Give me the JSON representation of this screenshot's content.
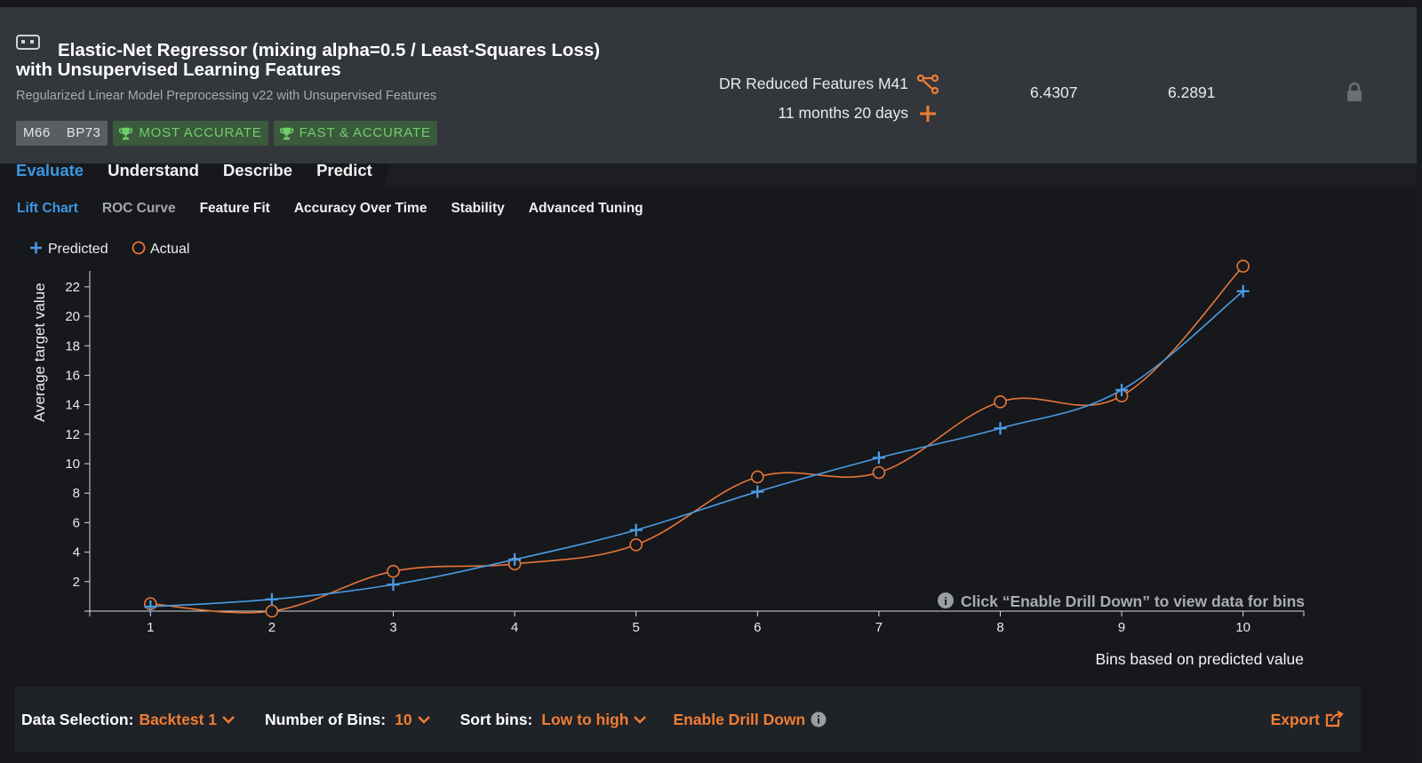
{
  "model": {
    "title_line1": "Elastic-Net Regressor (mixing alpha=0.5 / Least-Squares Loss)",
    "title_line2": "with Unsupervised Learning Features",
    "subtitle": "Regularized Linear Model Preprocessing v22 with Unsupervised Features",
    "id_badge": "M66",
    "bp_badge": "BP73",
    "badges": [
      "MOST ACCURATE",
      "FAST & ACCURATE"
    ],
    "feature_list": "DR Reduced Features M41",
    "sample_age": "11 months 20 days",
    "metric_validation": "6.4307",
    "metric_crossval": "6.2891"
  },
  "tabs": [
    "Evaluate",
    "Understand",
    "Describe",
    "Predict"
  ],
  "active_tab": "Evaluate",
  "subtabs": [
    "Lift Chart",
    "ROC Curve",
    "Feature Fit",
    "Accuracy Over Time",
    "Stability",
    "Advanced Tuning"
  ],
  "active_subtab": "Lift Chart",
  "chart_data": {
    "type": "line",
    "x": [
      1,
      2,
      3,
      4,
      5,
      6,
      7,
      8,
      9,
      10
    ],
    "series": [
      {
        "name": "Predicted",
        "color": "#4a9be6",
        "marker": "plus",
        "values": [
          0.3,
          0.8,
          1.8,
          3.5,
          5.5,
          8.1,
          10.4,
          12.4,
          15.0,
          21.7
        ]
      },
      {
        "name": "Actual",
        "color": "#e8763a",
        "marker": "circle",
        "values": [
          0.5,
          0.0,
          2.7,
          3.2,
          4.5,
          9.1,
          9.4,
          14.2,
          14.6,
          23.4
        ]
      }
    ],
    "ylabel": "Average target value",
    "xlabel": "Bins based on predicted value",
    "yticks": [
      2,
      4,
      6,
      8,
      10,
      12,
      14,
      16,
      18,
      20,
      22
    ],
    "ylim": [
      0,
      23.5
    ],
    "xlim": [
      0.5,
      10.5
    ],
    "legend_placement": "top-left",
    "note": "Click “Enable Drill Down” to view data for bins"
  },
  "controls": {
    "data_selection_label": "Data Selection:",
    "data_selection_value": "Backtest 1",
    "bins_label": "Number of Bins:",
    "bins_value": "10",
    "sort_label": "Sort bins:",
    "sort_value": "Low to high",
    "drill_down": "Enable Drill Down",
    "export": "Export"
  },
  "colors": {
    "accent_blue": "#3e97e4",
    "accent_orange": "#ef7d33",
    "badge_green": "#6fcf6a"
  }
}
